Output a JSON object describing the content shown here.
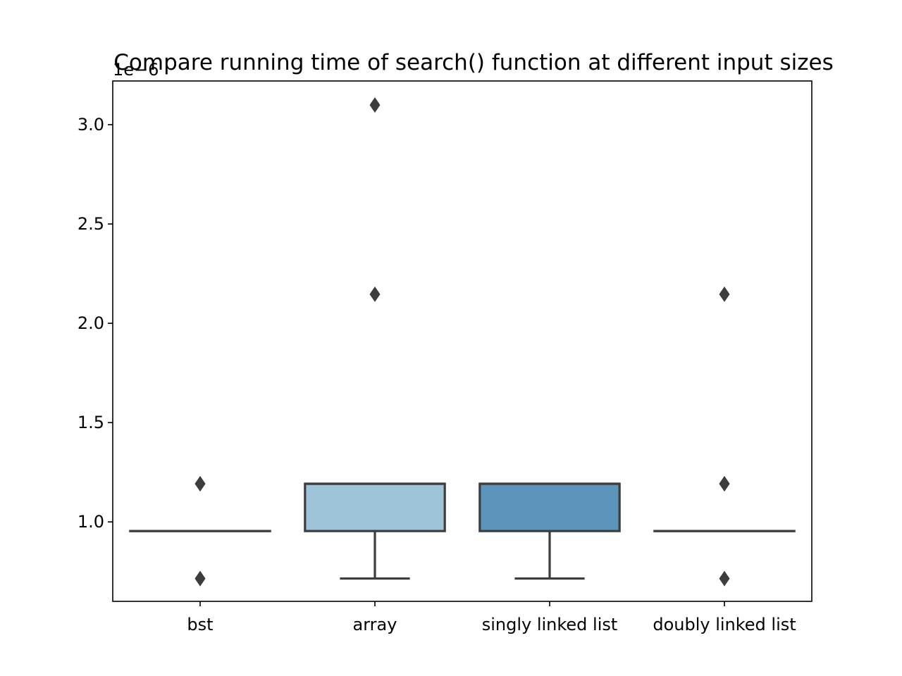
{
  "chart_data": {
    "type": "box",
    "title": "Compare running time of search() function at different input sizes",
    "xlabel": "",
    "ylabel": "",
    "y_offset_label": "1e−6",
    "ylim": [
      0.6,
      3.22
    ],
    "yticks": [
      1.0,
      1.5,
      2.0,
      2.5,
      3.0
    ],
    "ytick_labels": [
      "1.0",
      "1.5",
      "2.0",
      "2.5",
      "3.0"
    ],
    "grid": false,
    "categories": [
      "bst",
      "array",
      "singly linked list",
      "doubly linked list"
    ],
    "boxes": [
      {
        "category": "bst",
        "color": "#d0e1f2",
        "whisker_low": 0.954,
        "q1": 0.954,
        "median": 0.954,
        "q3": 0.954,
        "whisker_high": 0.954,
        "outliers": [
          1.192,
          1.192,
          0.715,
          0.715
        ]
      },
      {
        "category": "array",
        "color": "#9ec4d9",
        "whisker_low": 0.715,
        "q1": 0.954,
        "median": 1.192,
        "q3": 1.192,
        "whisker_high": 1.192,
        "outliers": [
          3.099,
          2.146
        ]
      },
      {
        "category": "singly linked list",
        "color": "#5b95bc",
        "whisker_low": 0.715,
        "q1": 0.954,
        "median": 1.192,
        "q3": 1.192,
        "whisker_high": 1.192,
        "outliers": []
      },
      {
        "category": "doubly linked list",
        "color": "#2c6ea5",
        "whisker_low": 0.954,
        "q1": 0.954,
        "median": 0.954,
        "q3": 0.954,
        "whisker_high": 0.954,
        "outliers": [
          2.146,
          1.192,
          1.192,
          0.715
        ]
      }
    ]
  }
}
